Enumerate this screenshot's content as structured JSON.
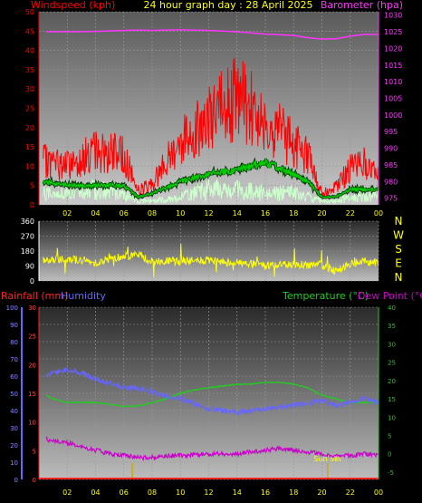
{
  "header": {
    "windspeed_label": "Windspeed (kph)",
    "title": "24 hour graph day : 28 April 2025",
    "barometer_label": "Barometer (hpa)"
  },
  "colors": {
    "windspeed": "#ff0000",
    "gust_avg": "#00cc00",
    "wind_base": "#ccffcc",
    "barometer": "#ff33ff",
    "direction": "#ffff00",
    "temperature": "#22cc22",
    "dewpoint": "#cc00cc",
    "humidity": "#6666ff",
    "rainfall": "#ff2222",
    "sun": "#ccaa00",
    "axis_text": "#ffff00"
  },
  "time_ticks": [
    "02",
    "04",
    "06",
    "08",
    "10",
    "12",
    "14",
    "16",
    "18",
    "20",
    "22",
    "00"
  ],
  "chart_data": [
    {
      "type": "line",
      "name": "wind-barometer",
      "title": "24 hour graph day : 28 April 2025",
      "ylabel_left": "Windspeed (kph)",
      "ylabel_right": "Barometer (hpa)",
      "left_ticks": [
        "50",
        "45",
        "40",
        "35",
        "30",
        "25",
        "20",
        "15",
        "10",
        "5",
        "0"
      ],
      "right_ticks": [
        "1030",
        "1025",
        "1020",
        "1015",
        "1010",
        "1005",
        "1000",
        "995",
        "990",
        "985",
        "980",
        "975"
      ],
      "ylim_left": [
        0,
        50
      ],
      "ylim_right": [
        973,
        1031
      ],
      "x": [
        0.5,
        2,
        4,
        6,
        7,
        8,
        10,
        12,
        14,
        16,
        18,
        19,
        20,
        21,
        22,
        23,
        24
      ],
      "series": [
        {
          "key": "wind_peak",
          "values": [
            12,
            11,
            15,
            14,
            4,
            6,
            18,
            24,
            30,
            24,
            17,
            14,
            3,
            5,
            10,
            12,
            8
          ]
        },
        {
          "key": "wind_avg",
          "values": [
            6,
            5,
            5,
            5,
            2,
            3,
            6,
            8,
            9,
            11,
            8,
            6,
            2,
            2,
            4,
            4,
            4
          ]
        },
        {
          "key": "wind_low",
          "values": [
            3,
            3,
            4,
            3,
            1,
            1,
            2,
            4,
            4,
            3,
            3,
            2,
            1,
            1,
            2,
            2,
            3
          ]
        },
        {
          "key": "barometer",
          "values": [
            1025.0,
            1025.0,
            1025.1,
            1025.4,
            1025.5,
            1025.4,
            1025.6,
            1025.4,
            1025.0,
            1024.3,
            1023.9,
            1023.2,
            1022.8,
            1022.9,
            1023.7,
            1024.2,
            1024.2
          ]
        }
      ]
    },
    {
      "type": "line",
      "name": "wind-direction",
      "left_ticks": [
        "360",
        "270",
        "180",
        "90",
        "0"
      ],
      "compass": [
        "N",
        "W",
        "S",
        "E",
        "N"
      ],
      "ylim": [
        0,
        360
      ],
      "x": [
        0.5,
        2,
        4,
        6,
        7,
        8,
        10,
        12,
        14,
        16,
        18,
        20,
        21,
        22,
        23,
        24
      ],
      "series": [
        {
          "key": "direction",
          "values": [
            120,
            135,
            110,
            150,
            160,
            115,
            120,
            120,
            110,
            95,
            100,
            95,
            60,
            100,
            120,
            105
          ]
        }
      ]
    },
    {
      "type": "line",
      "name": "temp-humidity",
      "rainfall_label": "Rainfall (mm)",
      "humidity_label": "Humidity",
      "temperature_label": "Temperature (°C)",
      "dewpoint_label": "Dew Point (°C)",
      "humidity_ticks": [
        "100",
        "90",
        "80",
        "70",
        "60",
        "50",
        "40",
        "30",
        "20",
        "10",
        "0"
      ],
      "rain_ticks": [
        "30",
        "25",
        "20",
        "15",
        "10",
        "5",
        "0"
      ],
      "temp_ticks": [
        "40",
        "35",
        "30",
        "25",
        "20",
        "15",
        "10",
        "5",
        "0",
        "-5"
      ],
      "ylim_humidity": [
        0,
        100
      ],
      "ylim_temp": [
        -7,
        40
      ],
      "x": [
        0.5,
        1,
        2,
        3,
        4,
        5,
        6,
        7,
        8,
        9,
        10,
        11,
        12,
        13,
        14,
        15,
        16,
        17,
        18,
        19,
        20,
        21,
        22,
        23,
        24
      ],
      "series": [
        {
          "key": "humidity",
          "values": [
            61,
            62,
            64,
            62,
            58,
            56,
            53,
            53,
            51,
            48,
            47,
            44,
            41,
            40,
            39,
            40,
            41,
            42,
            43,
            44,
            46,
            43,
            45,
            47,
            45
          ]
        },
        {
          "key": "temperature",
          "values": [
            16,
            15,
            14,
            14,
            14,
            13.5,
            13,
            13,
            14,
            15,
            16.5,
            17.5,
            18,
            18.5,
            19,
            19,
            19.5,
            19.5,
            19,
            18,
            16,
            15,
            14,
            14,
            14
          ]
        },
        {
          "key": "dewpoint",
          "values": [
            4,
            3.5,
            3,
            2,
            1,
            0,
            -0.5,
            -1,
            -1,
            -0.5,
            -0.5,
            -0.3,
            0,
            0,
            0,
            0.5,
            1,
            1.5,
            1,
            0.5,
            0,
            -0.5,
            -0.5,
            0,
            -0.5
          ]
        },
        {
          "key": "rainfall",
          "values": [
            0,
            0,
            0,
            0,
            0,
            0,
            0,
            0,
            0,
            0,
            0,
            0,
            0,
            0,
            0,
            0,
            0,
            0,
            0,
            0,
            0,
            0,
            0,
            0,
            0
          ]
        }
      ],
      "sun_events": [
        {
          "label": "",
          "x": 6.6
        },
        {
          "label": "Sun Set",
          "x": 20.4
        }
      ]
    }
  ]
}
